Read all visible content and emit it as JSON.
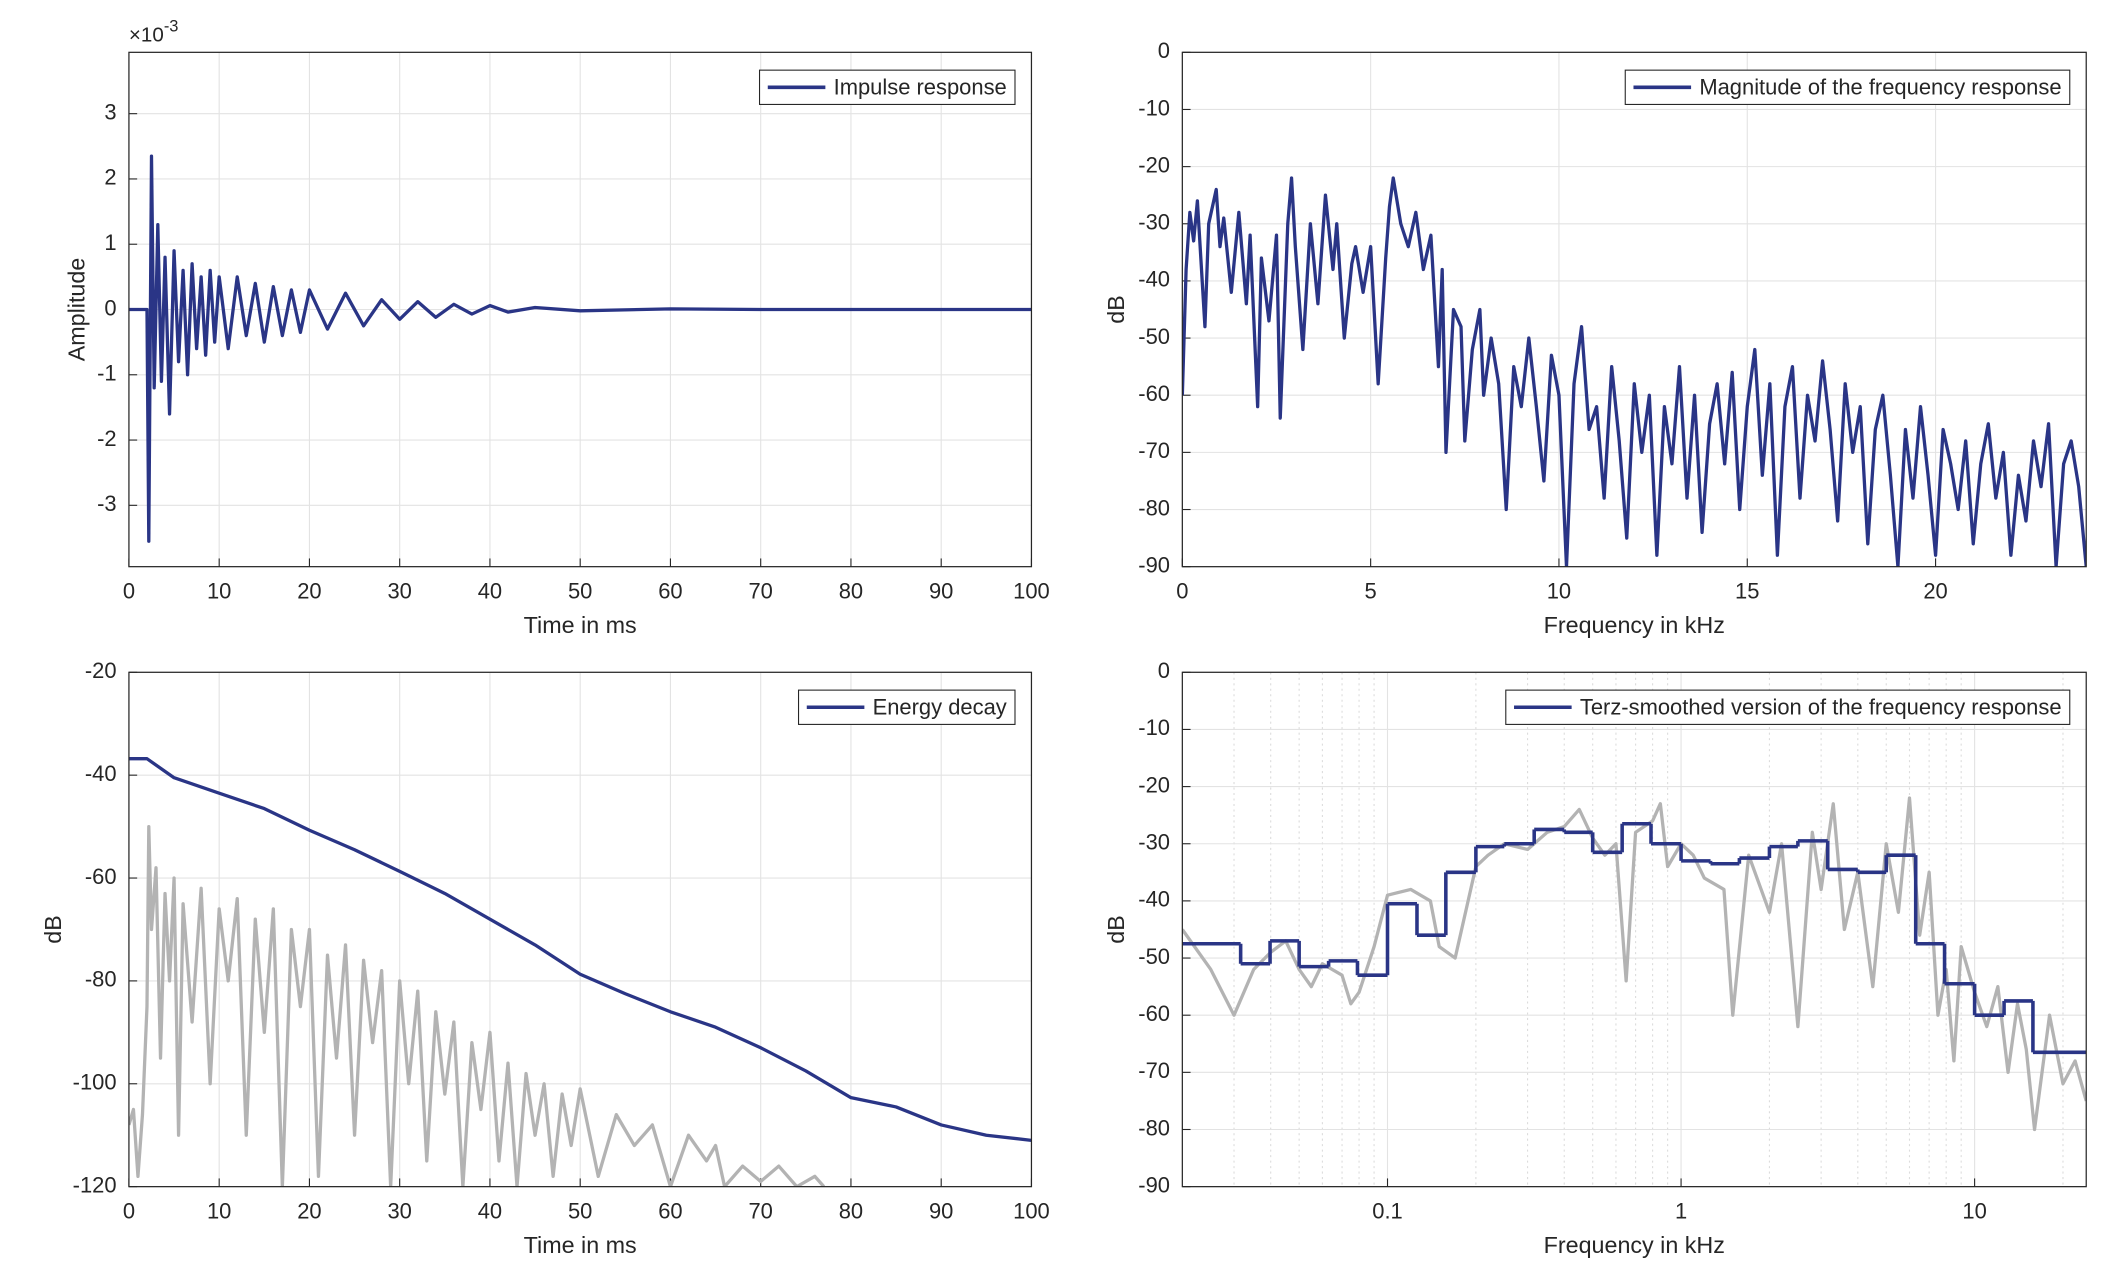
{
  "chart_data": [
    {
      "type": "line",
      "xlabel": "Time in ms",
      "ylabel": "Amplitude",
      "y_exponent": {
        "base": "×10",
        "power": "-3"
      },
      "xlim": [
        0,
        100
      ],
      "ylim": [
        -3.94,
        3.94
      ],
      "xticks": [
        0,
        10,
        20,
        30,
        40,
        50,
        60,
        70,
        80,
        90,
        100
      ],
      "yticks": [
        -3,
        -2,
        -1,
        0,
        1,
        2,
        3
      ],
      "grid": true,
      "legend": "upper right",
      "series": [
        {
          "name": "Impulse response",
          "color": "#2a3586",
          "x": [
            0,
            1,
            2,
            2.2,
            2.5,
            2.8,
            3.2,
            3.6,
            4,
            4.5,
            5,
            5.5,
            6,
            6.5,
            7,
            7.5,
            8,
            8.5,
            9,
            9.5,
            10,
            11,
            12,
            13,
            14,
            15,
            16,
            17,
            18,
            19,
            20,
            22,
            24,
            26,
            28,
            30,
            32,
            34,
            36,
            38,
            40,
            42,
            45,
            50,
            60,
            70,
            100
          ],
          "values": [
            0,
            0,
            0,
            -3.55,
            2.35,
            -1.2,
            1.3,
            -1.1,
            0.8,
            -1.6,
            0.9,
            -0.8,
            0.6,
            -1.0,
            0.7,
            -0.6,
            0.5,
            -0.7,
            0.6,
            -0.5,
            0.5,
            -0.6,
            0.5,
            -0.4,
            0.4,
            -0.5,
            0.35,
            -0.4,
            0.3,
            -0.35,
            0.3,
            -0.3,
            0.25,
            -0.25,
            0.15,
            -0.15,
            0.12,
            -0.12,
            0.08,
            -0.07,
            0.06,
            -0.04,
            0.03,
            -0.02,
            0.01,
            0,
            0
          ]
        }
      ]
    },
    {
      "type": "line",
      "xlabel": "Frequency in kHz",
      "ylabel": "dB",
      "xlim": [
        0,
        24
      ],
      "ylim": [
        -90,
        0
      ],
      "xticks": [
        0,
        5,
        10,
        15,
        20
      ],
      "yticks": [
        -90,
        -80,
        -70,
        -60,
        -50,
        -40,
        -30,
        -20,
        -10,
        0
      ],
      "grid": true,
      "legend": "upper right",
      "series": [
        {
          "name": "Magnitude of the frequency response",
          "color": "#2a3586",
          "x": [
            0,
            0.1,
            0.2,
            0.3,
            0.4,
            0.6,
            0.7,
            0.9,
            1.0,
            1.1,
            1.3,
            1.5,
            1.7,
            1.8,
            2.0,
            2.1,
            2.3,
            2.5,
            2.6,
            2.8,
            2.9,
            3.0,
            3.2,
            3.4,
            3.6,
            3.8,
            4.0,
            4.1,
            4.3,
            4.5,
            4.6,
            4.8,
            5.0,
            5.2,
            5.4,
            5.5,
            5.6,
            5.8,
            6.0,
            6.2,
            6.4,
            6.6,
            6.8,
            6.9,
            7.0,
            7.2,
            7.4,
            7.5,
            7.7,
            7.9,
            8.0,
            8.2,
            8.4,
            8.6,
            8.8,
            9.0,
            9.2,
            9.4,
            9.6,
            9.8,
            10.0,
            10.2,
            10.4,
            10.6,
            10.8,
            11.0,
            11.2,
            11.4,
            11.6,
            11.8,
            12.0,
            12.2,
            12.4,
            12.6,
            12.8,
            13.0,
            13.2,
            13.4,
            13.6,
            13.8,
            14.0,
            14.2,
            14.4,
            14.6,
            14.8,
            15.0,
            15.2,
            15.4,
            15.6,
            15.8,
            16.0,
            16.2,
            16.4,
            16.6,
            16.8,
            17.0,
            17.2,
            17.4,
            17.6,
            17.8,
            18.0,
            18.2,
            18.4,
            18.6,
            18.8,
            19.0,
            19.2,
            19.4,
            19.6,
            19.8,
            20.0,
            20.2,
            20.4,
            20.6,
            20.8,
            21.0,
            21.2,
            21.4,
            21.6,
            21.8,
            22.0,
            22.2,
            22.4,
            22.6,
            22.8,
            23.0,
            23.2,
            23.4,
            23.6,
            23.8,
            24.0
          ],
          "values": [
            -60,
            -38,
            -28,
            -33,
            -26,
            -48,
            -30,
            -24,
            -34,
            -29,
            -42,
            -28,
            -44,
            -32,
            -62,
            -36,
            -47,
            -32,
            -64,
            -30,
            -22,
            -34,
            -52,
            -30,
            -44,
            -25,
            -38,
            -30,
            -50,
            -37,
            -34,
            -42,
            -34,
            -58,
            -36,
            -27,
            -22,
            -30,
            -34,
            -28,
            -38,
            -32,
            -55,
            -38,
            -70,
            -45,
            -48,
            -68,
            -52,
            -45,
            -60,
            -50,
            -58,
            -80,
            -55,
            -62,
            -50,
            -62,
            -75,
            -53,
            -60,
            -90,
            -58,
            -48,
            -66,
            -62,
            -78,
            -55,
            -68,
            -85,
            -58,
            -70,
            -60,
            -88,
            -62,
            -72,
            -55,
            -78,
            -60,
            -84,
            -65,
            -58,
            -72,
            -56,
            -80,
            -62,
            -52,
            -74,
            -58,
            -88,
            -62,
            -55,
            -78,
            -60,
            -68,
            -54,
            -66,
            -82,
            -58,
            -70,
            -62,
            -86,
            -66,
            -60,
            -74,
            -90,
            -66,
            -78,
            -62,
            -74,
            -88,
            -66,
            -72,
            -80,
            -68,
            -86,
            -72,
            -65,
            -78,
            -70,
            -88,
            -74,
            -82,
            -68,
            -76,
            -65,
            -90,
            -72,
            -68,
            -76,
            -90
          ]
        }
      ]
    },
    {
      "type": "line",
      "xlabel": "Time in ms",
      "ylabel": "dB",
      "xlim": [
        0,
        100
      ],
      "ylim": [
        -120,
        -20
      ],
      "xticks": [
        0,
        10,
        20,
        30,
        40,
        50,
        60,
        70,
        80,
        90,
        100
      ],
      "yticks": [
        -120,
        -100,
        -80,
        -60,
        -40,
        -20
      ],
      "grid": true,
      "legend": "upper right",
      "series": [
        {
          "color": "#b3b3b3",
          "x": [
            0,
            0.5,
            1,
            1.5,
            2,
            2.2,
            2.5,
            3,
            3.5,
            4,
            4.5,
            5,
            5.5,
            6,
            7,
            8,
            9,
            10,
            11,
            12,
            13,
            14,
            15,
            16,
            17,
            18,
            19,
            20,
            21,
            22,
            23,
            24,
            25,
            26,
            27,
            28,
            29,
            30,
            31,
            32,
            33,
            34,
            35,
            36,
            37,
            38,
            39,
            40,
            41,
            42,
            43,
            44,
            45,
            46,
            47,
            48,
            49,
            50,
            52,
            54,
            56,
            58,
            60,
            62,
            64,
            65,
            66,
            68,
            70,
            72,
            74,
            76,
            77
          ],
          "values": [
            -108,
            -105,
            -118,
            -106,
            -85,
            -50,
            -70,
            -58,
            -95,
            -63,
            -80,
            -60,
            -110,
            -65,
            -88,
            -62,
            -100,
            -66,
            -80,
            -64,
            -110,
            -68,
            -90,
            -66,
            -120,
            -70,
            -85,
            -70,
            -118,
            -75,
            -95,
            -73,
            -110,
            -76,
            -92,
            -78,
            -120,
            -80,
            -100,
            -82,
            -115,
            -86,
            -102,
            -88,
            -120,
            -92,
            -105,
            -90,
            -115,
            -96,
            -120,
            -98,
            -110,
            -100,
            -118,
            -102,
            -112,
            -101,
            -118,
            -106,
            -112,
            -108,
            -120,
            -110,
            -115,
            -112,
            -120,
            -116,
            -119,
            -116,
            -120,
            -118,
            -120
          ]
        },
        {
          "name": "Energy decay",
          "color": "#2a3586",
          "x": [
            0,
            2,
            5,
            10,
            15,
            20,
            25,
            30,
            35,
            40,
            45,
            50,
            55,
            60,
            65,
            70,
            75,
            80,
            85,
            90,
            95,
            100
          ],
          "values": [
            -36.8,
            -36.8,
            -40.5,
            -43.5,
            -46.5,
            -50.7,
            -54.5,
            -58.7,
            -63,
            -68,
            -73,
            -78.7,
            -82.5,
            -86,
            -89,
            -93,
            -97.5,
            -102.7,
            -104.5,
            -108,
            -110,
            -111
          ]
        }
      ]
    },
    {
      "type": "line",
      "xlabel": "Frequency in kHz",
      "ylabel": "dB",
      "xscale": "log",
      "minor_grid": true,
      "xlim": [
        0.02,
        24
      ],
      "ylim": [
        -90,
        0
      ],
      "xticks": [
        0.1,
        1,
        10
      ],
      "yticks": [
        -90,
        -80,
        -70,
        -60,
        -50,
        -40,
        -30,
        -20,
        -10,
        0
      ],
      "grid": true,
      "legend": "upper right",
      "series": [
        {
          "color": "#b3b3b3",
          "x": [
            0.02,
            0.025,
            0.03,
            0.035,
            0.04,
            0.045,
            0.05,
            0.055,
            0.06,
            0.07,
            0.075,
            0.08,
            0.09,
            0.1,
            0.12,
            0.14,
            0.15,
            0.17,
            0.2,
            0.22,
            0.25,
            0.3,
            0.35,
            0.4,
            0.45,
            0.5,
            0.55,
            0.6,
            0.65,
            0.7,
            0.8,
            0.85,
            0.9,
            1,
            1.1,
            1.2,
            1.4,
            1.5,
            1.7,
            2,
            2.2,
            2.5,
            2.8,
            3,
            3.3,
            3.6,
            4,
            4.5,
            5,
            5.5,
            6,
            6.5,
            7,
            7.5,
            8,
            8.5,
            9,
            10,
            11,
            12,
            13,
            14,
            15,
            16,
            18,
            20,
            22,
            24
          ],
          "values": [
            -45,
            -52,
            -60,
            -52,
            -49,
            -47,
            -52,
            -55,
            -51,
            -53,
            -58,
            -56,
            -48,
            -39,
            -38,
            -40,
            -48,
            -50,
            -34,
            -32,
            -30,
            -31,
            -28,
            -27,
            -24,
            -29,
            -32,
            -30,
            -54,
            -28,
            -26,
            -23,
            -34,
            -30,
            -32,
            -36,
            -38,
            -60,
            -32,
            -42,
            -30,
            -62,
            -28,
            -38,
            -23,
            -45,
            -35,
            -55,
            -30,
            -42,
            -22,
            -46,
            -35,
            -60,
            -52,
            -68,
            -48,
            -56,
            -62,
            -55,
            -70,
            -58,
            -66,
            -80,
            -60,
            -72,
            -68,
            -75
          ]
        },
        {
          "name": "Terz-smoothed version of the frequency response",
          "color": "#2a3586",
          "drawstyle": "steps-post",
          "x": [
            0.02,
            0.0316,
            0.0398,
            0.05,
            0.063,
            0.079,
            0.1,
            0.126,
            0.158,
            0.2,
            0.25,
            0.316,
            0.4,
            0.5,
            0.63,
            0.79,
            1,
            1.26,
            1.58,
            2,
            2.5,
            3.16,
            4,
            5,
            6.3,
            7.9,
            10,
            12.6,
            15.8
          ],
          "values": [
            -47.5,
            -51,
            -47,
            -51.5,
            -50.5,
            -53,
            -40.5,
            -46,
            -35,
            -30.5,
            -30,
            -27.5,
            -28,
            -31.5,
            -26.5,
            -30,
            -33,
            -33.5,
            -32.5,
            -30.5,
            -29.5,
            -34.5,
            -35,
            -32,
            -47.5,
            -54.5,
            -60,
            -57.5,
            -66.5
          ]
        }
      ]
    }
  ]
}
